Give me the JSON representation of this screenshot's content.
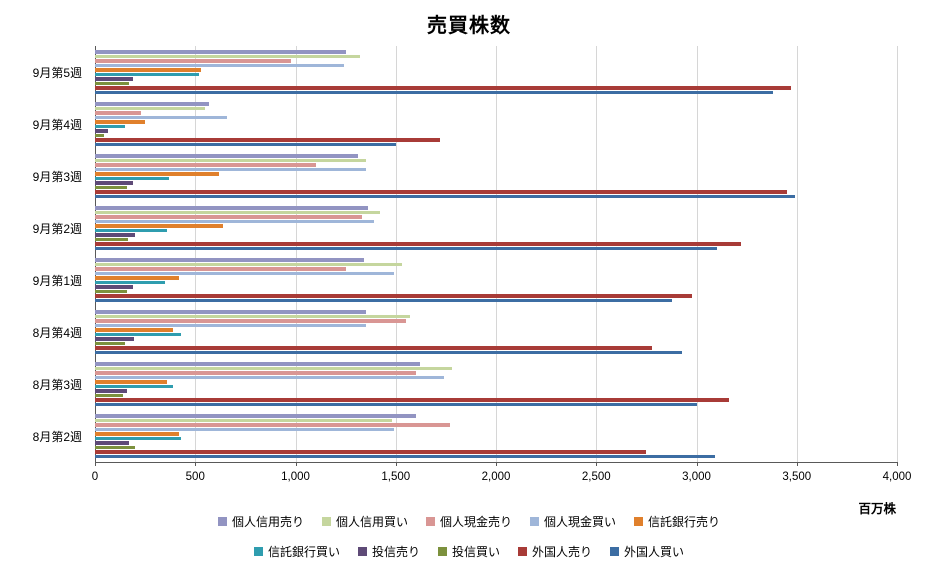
{
  "chart_data": {
    "type": "bar",
    "orientation": "horizontal",
    "title": "売買株数",
    "unit_label": "百万株",
    "xlim": [
      0,
      4000
    ],
    "xtick_values": [
      0,
      500,
      1000,
      1500,
      2000,
      2500,
      3000,
      3500,
      4000
    ],
    "xtick_labels": [
      "0",
      "500",
      "1,000",
      "1,500",
      "2,000",
      "2,500",
      "3,000",
      "3,500",
      "4,000"
    ],
    "grid": true,
    "legend_position": "bottom",
    "legend_items_per_row": 5,
    "categories": [
      "9月第5週",
      "9月第4週",
      "9月第3週",
      "9月第2週",
      "9月第1週",
      "8月第4週",
      "8月第3週",
      "8月第2週"
    ],
    "series": [
      {
        "name": "個人信用売り",
        "color": "#9294C2",
        "values": [
          1250,
          570,
          1310,
          1360,
          1340,
          1350,
          1620,
          1600
        ]
      },
      {
        "name": "個人信用買い",
        "color": "#C5D69E",
        "values": [
          1320,
          550,
          1350,
          1420,
          1530,
          1570,
          1780,
          1480
        ]
      },
      {
        "name": "個人現金売り",
        "color": "#D99694",
        "values": [
          980,
          230,
          1100,
          1330,
          1250,
          1550,
          1600,
          1770
        ]
      },
      {
        "name": "個人現金買い",
        "color": "#9FB6D9",
        "values": [
          1240,
          660,
          1350,
          1390,
          1490,
          1350,
          1740,
          1490
        ]
      },
      {
        "name": "信託銀行売り",
        "color": "#E0802C",
        "values": [
          530,
          250,
          620,
          640,
          420,
          390,
          360,
          420
        ]
      },
      {
        "name": "信託銀行買い",
        "color": "#2F9DAF",
        "values": [
          520,
          150,
          370,
          360,
          350,
          430,
          390,
          430
        ]
      },
      {
        "name": "投信売り",
        "color": "#5E4A77",
        "values": [
          190,
          65,
          190,
          200,
          190,
          195,
          160,
          170
        ]
      },
      {
        "name": "投信買い",
        "color": "#7C913D",
        "values": [
          170,
          45,
          160,
          165,
          160,
          150,
          140,
          200
        ]
      },
      {
        "name": "外国人売り",
        "color": "#A83B37",
        "values": [
          3470,
          1720,
          3450,
          3220,
          2980,
          2780,
          3160,
          2750
        ]
      },
      {
        "name": "外国人買い",
        "color": "#3C6DA3",
        "values": [
          3380,
          1500,
          3490,
          3100,
          2880,
          2930,
          3000,
          3090
        ]
      }
    ]
  }
}
